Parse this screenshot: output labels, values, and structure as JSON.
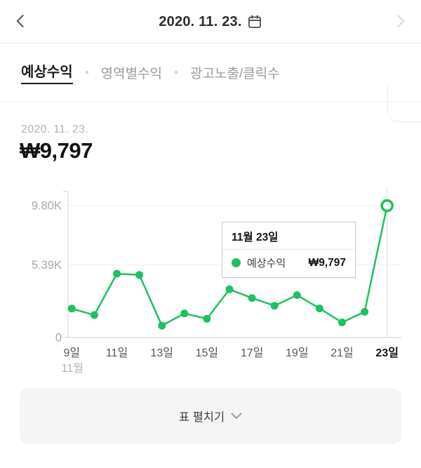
{
  "header": {
    "title": "2020. 11. 23."
  },
  "tabs": [
    {
      "label": "예상수익",
      "active": true
    },
    {
      "label": "영역별수익",
      "active": false
    },
    {
      "label": "광고노출/클릭수",
      "active": false
    }
  ],
  "summary": {
    "date": "2020. 11. 23.",
    "amount": "₩9,797"
  },
  "tooltip": {
    "title": "11월 23일",
    "series_label": "예상수익",
    "value": "₩9,797"
  },
  "expand_button": {
    "label": "표 펼치기"
  },
  "icons": {
    "header_left": "chevron-left-icon",
    "header_right": "chevron-right-icon (disabled)",
    "header_date": "calendar-icon",
    "tooltip_series": "green-series-dot-icon",
    "expand": "chevron-down-icon"
  },
  "colors": {
    "accent_green": "#1ec15f",
    "grid_line": "#ededed",
    "axis_line": "#d6d6d6",
    "highlight_line": "#e2e2e2",
    "y_label": "#a9a9a9",
    "x_label": "#565656",
    "x_label_active": "#141414",
    "month_label": "#b4b4b4",
    "button_bg": "#f5f5f5"
  },
  "chart_data": {
    "type": "line",
    "title": "예상수익 일별 추이",
    "x": [
      9,
      10,
      11,
      12,
      13,
      14,
      15,
      16,
      17,
      18,
      19,
      20,
      21,
      22,
      23
    ],
    "x_unit": "일",
    "series": [
      {
        "name": "예상수익",
        "values": [
          2150,
          1670,
          4740,
          4650,
          880,
          1790,
          1390,
          3580,
          2930,
          2360,
          3150,
          2160,
          1120,
          1910,
          9797
        ]
      }
    ],
    "highlight_index": 14,
    "x_tick_labels": [
      "9일",
      "11일",
      "13일",
      "15일",
      "17일",
      "19일",
      "21일",
      "23일"
    ],
    "x_axis_sub_label": "11월",
    "y_ticks": [
      0,
      5390,
      9800
    ],
    "y_tick_labels": [
      "0",
      "5.39K",
      "9.80K"
    ],
    "ylim": [
      0,
      9800
    ],
    "grid": true,
    "legend_position": "tooltip"
  }
}
